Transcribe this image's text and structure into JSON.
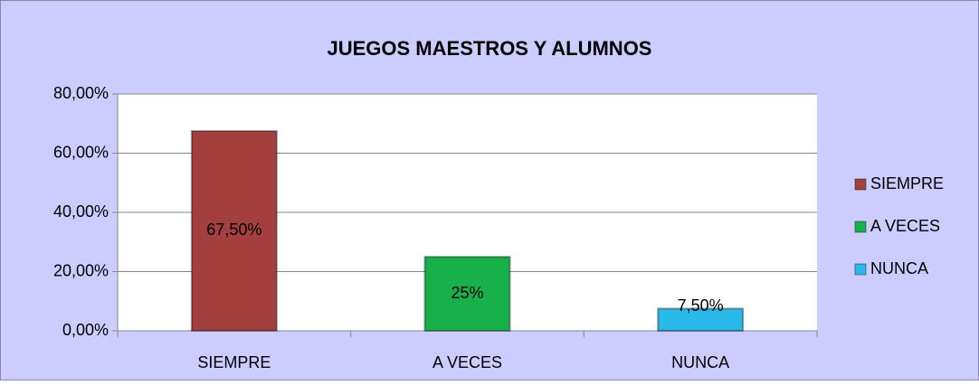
{
  "chart_data": {
    "type": "bar",
    "title": "JUEGOS MAESTROS Y ALUMNOS",
    "categories": [
      "SIEMPRE",
      "A VECES",
      "NUNCA"
    ],
    "values": [
      67.5,
      25,
      7.5
    ],
    "value_labels": [
      "67,50%",
      "25%",
      "7,50%"
    ],
    "colors": [
      "#a33f3c",
      "#18b04a",
      "#2bb9ea"
    ],
    "ylim": [
      0,
      80
    ],
    "yticks": [
      {
        "value": 0,
        "label": "0,00%"
      },
      {
        "value": 20,
        "label": "20,00%"
      },
      {
        "value": 40,
        "label": "40,00%"
      },
      {
        "value": 60,
        "label": "60,00%"
      },
      {
        "value": 80,
        "label": "80,00%"
      }
    ],
    "grid": true,
    "legend": "right"
  }
}
